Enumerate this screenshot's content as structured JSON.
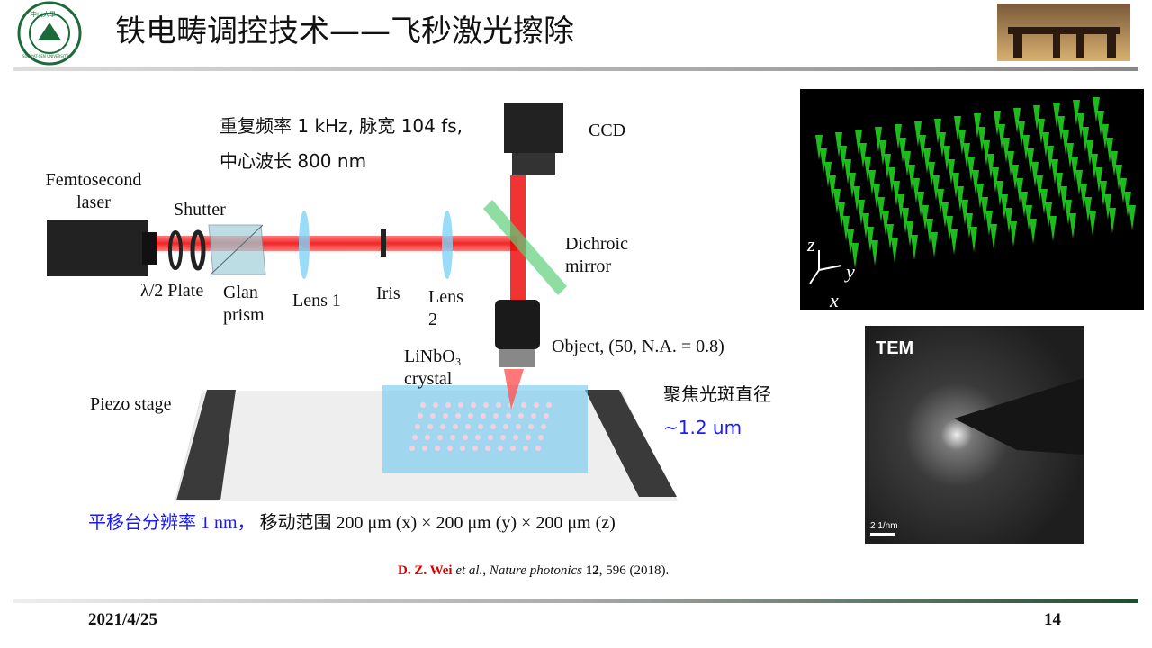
{
  "header": {
    "title": "铁电畴调控技术——飞秒激光擦除",
    "logo": {
      "name": "中山大學",
      "motto": "SUN YAT-SEN UNIVERSITY"
    }
  },
  "setup": {
    "params": [
      "重复频率 1 kHz, 脉宽 104 fs,",
      "中心波长 800 nm"
    ],
    "labels": {
      "laser": [
        "Femtosecond",
        "laser"
      ],
      "shutter": "Shutter",
      "plate": "λ/2 Plate",
      "prism": [
        "Glan",
        "prism"
      ],
      "lens1": "Lens 1",
      "iris": "Iris",
      "lens2": [
        "Lens",
        "2"
      ],
      "ccd": "CCD",
      "mirror": [
        "Dichroic",
        "mirror"
      ],
      "object": "Object, (50, N.A. = 0.8)",
      "crystal": [
        "LiNbO₃",
        "crystal"
      ],
      "stage": "Piezo stage"
    },
    "spot": {
      "label": "聚焦光斑直径",
      "value": "~1.2 um"
    },
    "stage_note": {
      "resolution": "平移台分辨率 1 nm，",
      "range": "移动范围 200 μm (x) × 200 μm (y) × 200 μm (z)"
    }
  },
  "images": {
    "array_axes": [
      "z",
      "y",
      "x"
    ],
    "tem": {
      "label": "TEM",
      "scale": "2 1/nm"
    }
  },
  "citation": {
    "authors": "D. Z. Wei",
    "etal": " et al.",
    "sep": ", ",
    "journal": "Nature photonics",
    "volume": "12",
    "rest": ", 596 (2018)."
  },
  "footer": {
    "date": "2021/4/25",
    "page": "14"
  }
}
